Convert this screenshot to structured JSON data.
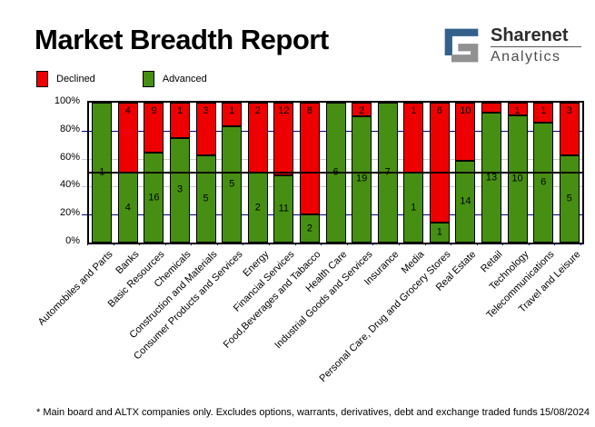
{
  "header": {
    "title": "Market Breadth Report"
  },
  "logo": {
    "brand": "Sharenet",
    "sub": "Analytics",
    "mark_blue": "#33618c",
    "mark_gray": "#919191"
  },
  "legend": {
    "items": [
      {
        "label": "Declined",
        "color": "#ee0000"
      },
      {
        "label": "Advanced",
        "color": "#478f12"
      }
    ]
  },
  "chart_data": {
    "type": "bar",
    "stacked": true,
    "normalized_to_100_percent": true,
    "title": "Market Breadth Report",
    "xlabel": "",
    "ylabel": "",
    "y_ticks": [
      "100%",
      "80%",
      "60%",
      "40%",
      "20%",
      "0%"
    ],
    "ylim": [
      0,
      100
    ],
    "legend_position": "top-left",
    "gridlines": {
      "navy_percents": [
        80,
        20
      ],
      "gray_percents": [
        60,
        40
      ],
      "solid_black_percent": 50
    },
    "categories": [
      "Automobiles and Parts",
      "Banks",
      "Basic Resources",
      "Chemicals",
      "Construction and Materials",
      "Consumer Products and Services",
      "Energy",
      "Financial Services",
      "Food,Beverages and Tabacco",
      "Health Care",
      "Industrial Goods and Services",
      "Insurance",
      "Media",
      "Personal Care, Drug and Grocery Stores",
      "Real Estate",
      "Retail",
      "Technology",
      "Telecommunications",
      "Travel and Leisure"
    ],
    "series": [
      {
        "name": "Declined",
        "color": "#ee0000",
        "values": [
          0,
          4,
          9,
          1,
          3,
          1,
          2,
          12,
          8,
          0,
          2,
          0,
          1,
          6,
          10,
          1,
          1,
          1,
          3
        ],
        "bar_labels": [
          "",
          "4",
          "9",
          "1",
          "3",
          "1",
          "2",
          "12",
          "8",
          "",
          "2",
          "",
          "1",
          "6",
          "10",
          "",
          "1",
          "1",
          "3"
        ]
      },
      {
        "name": "Advanced",
        "color": "#478f12",
        "values": [
          1,
          4,
          16,
          3,
          5,
          5,
          2,
          11,
          2,
          6,
          19,
          7,
          1,
          1,
          14,
          13,
          10,
          6,
          5
        ],
        "bar_labels": [
          "1",
          "4",
          "16",
          "3",
          "5",
          "5",
          "2",
          "11",
          "2",
          "6",
          "19",
          "7",
          "1",
          "1",
          "14",
          "13",
          "10",
          "6",
          "5"
        ]
      }
    ]
  },
  "footer": {
    "note": "* Main board and ALTX companies only. Excludes options, warrants, derivatives, debt and exchange traded funds",
    "date": "15/08/2024"
  }
}
